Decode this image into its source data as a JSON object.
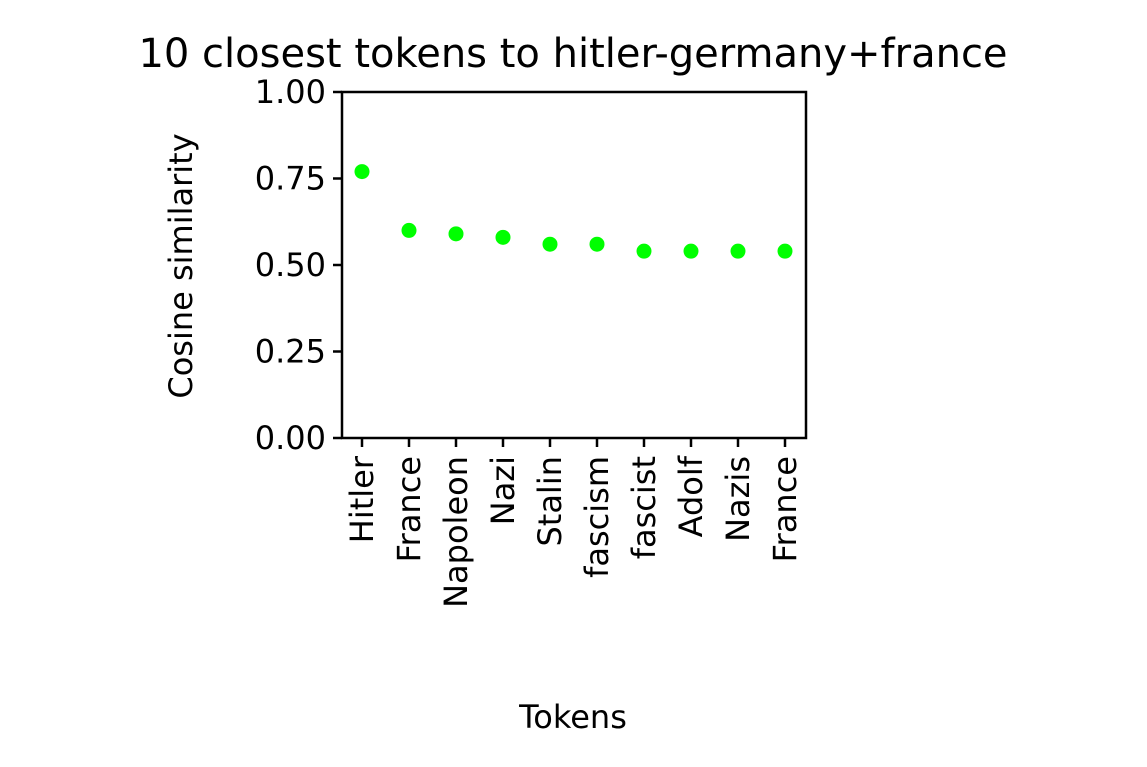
{
  "chart_data": {
    "type": "scatter",
    "title": "10 closest tokens to hitler-germany+france",
    "xlabel": "Tokens",
    "ylabel": "Cosine similarity",
    "categories": [
      "Hitler",
      "France",
      "Napoleon",
      "Nazi",
      "Stalin",
      "fascism",
      "fascist",
      "Adolf",
      "Nazis",
      "France"
    ],
    "values": [
      0.77,
      0.6,
      0.59,
      0.58,
      0.56,
      0.56,
      0.54,
      0.54,
      0.54,
      0.54
    ],
    "ylim": [
      0,
      1
    ],
    "yticks": [
      "0.00",
      "0.25",
      "0.50",
      "0.75",
      "1.00"
    ],
    "ytick_values": [
      0,
      0.25,
      0.5,
      0.75,
      1.0
    ],
    "grid": false,
    "marker_color": "#00ff00"
  }
}
